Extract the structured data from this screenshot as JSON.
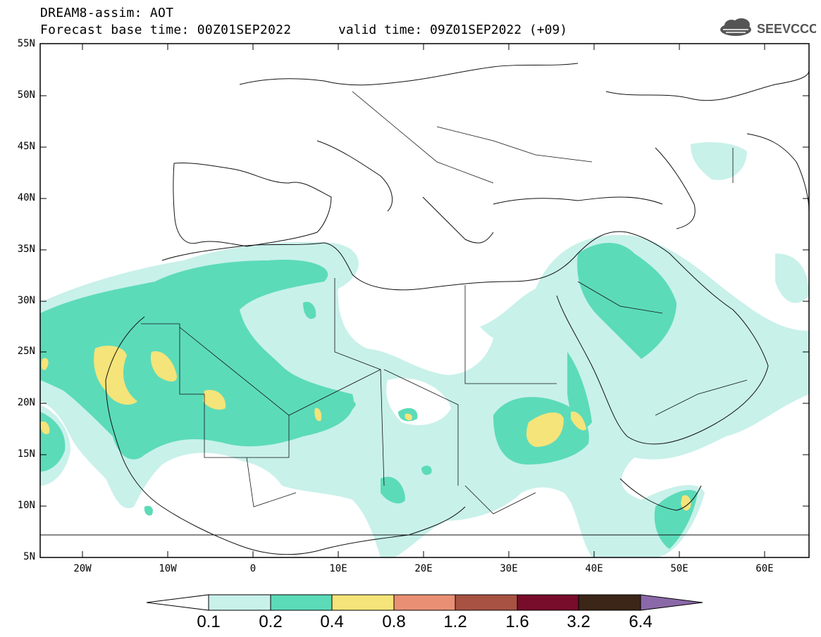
{
  "header": {
    "title": "DREAM8-assim: AOT",
    "base_time": "Forecast base time: 00Z01SEP2022",
    "valid_time": "valid time: 09Z01SEP2022 (+09)",
    "logo_text": "SEEVCCC"
  },
  "map": {
    "lat_labels": [
      "55N",
      "50N",
      "45N",
      "40N",
      "35N",
      "30N",
      "25N",
      "20N",
      "15N",
      "10N",
      "5N"
    ],
    "lon_labels": [
      "20W",
      "10W",
      "0",
      "10E",
      "20E",
      "30E",
      "40E",
      "50E",
      "60E"
    ],
    "extent": {
      "lon": [
        -25,
        65
      ],
      "lat": [
        5,
        55
      ]
    }
  },
  "legend": {
    "levels": [
      "0.1",
      "0.2",
      "0.4",
      "0.8",
      "1.2",
      "1.6",
      "3.2",
      "6.4"
    ],
    "colors": [
      "#c8f1ea",
      "#5cdbb9",
      "#f5e479",
      "#e99074",
      "#a85243",
      "#780c2b",
      "#3b2617",
      "#8b69a8"
    ]
  }
}
